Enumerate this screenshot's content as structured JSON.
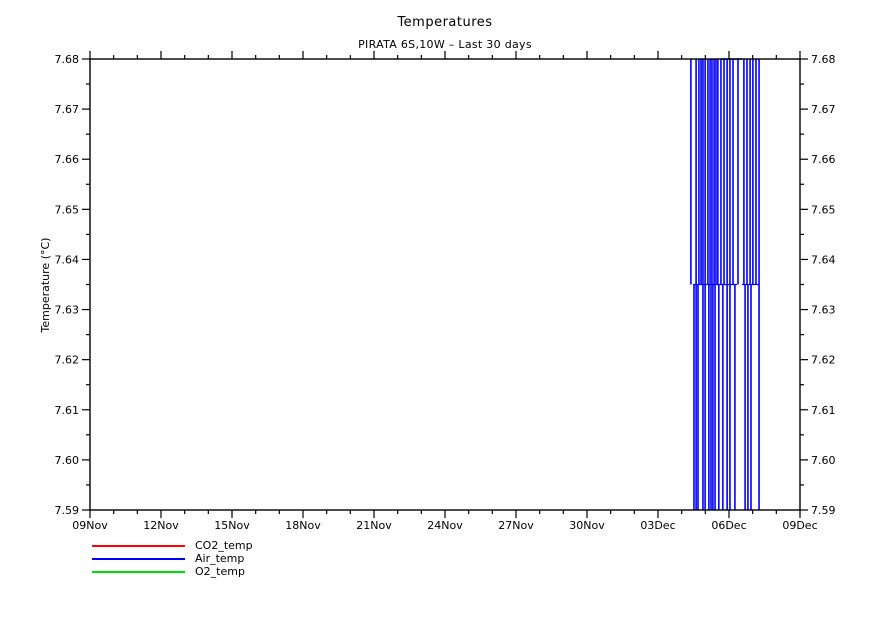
{
  "chart_data": {
    "type": "line",
    "title": "Temperatures",
    "subtitle": "PIRATA 6S,10W – Last 30 days",
    "ylabel": "Temperature (°C)",
    "ylim": [
      7.59,
      7.68
    ],
    "y_major_step": 0.01,
    "y_minor_step": 0.005,
    "y_tick_labels": [
      "7.59",
      "7.60",
      "7.61",
      "7.62",
      "7.63",
      "7.64",
      "7.65",
      "7.66",
      "7.67",
      "7.68"
    ],
    "y_labels_on_both_sides": true,
    "x_axis": {
      "days_total": 30,
      "major_every_days": 3,
      "minor_every_days": 1,
      "tick_labels": [
        "09Nov",
        "12Nov",
        "15Nov",
        "18Nov",
        "21Nov",
        "24Nov",
        "27Nov",
        "30Nov",
        "03Dec",
        "06Dec",
        "09Dec"
      ]
    },
    "grid": "off",
    "axis_color": "#000000",
    "legend": {
      "position": "below-left",
      "entries": [
        {
          "label": "CO2_temp",
          "color": "#ff0000"
        },
        {
          "label": "Air_temp",
          "color": "#0000ff"
        },
        {
          "label": "O2_temp",
          "color": "#00dd00"
        }
      ]
    },
    "series": [
      {
        "name": "CO2_temp",
        "color": "#ff0000",
        "data_visible": false
      },
      {
        "name": "Air_temp",
        "color": "#0000ff",
        "data_visible": true,
        "baseline_value": 7.635,
        "baseline_runs_days": [
          [
            25.48,
            27.34
          ],
          [
            27.55,
            28.27
          ]
        ],
        "top_clip_value": 7.68,
        "top_clip_runs_days": [
          [
            26.66,
            27.55
          ]
        ],
        "bottom_clip_value": 7.59,
        "up_spikes_days": [
          25.39,
          25.61,
          25.73,
          25.82,
          25.9,
          25.99,
          26.11,
          26.2,
          26.28,
          26.37,
          26.45,
          26.53,
          26.66,
          26.79,
          26.92,
          27.04,
          27.17,
          27.38,
          27.63,
          27.76,
          27.89,
          28.01,
          28.14,
          28.27
        ],
        "down_spikes_days": [
          25.52,
          25.61,
          25.69,
          25.9,
          25.99,
          26.15,
          26.24,
          26.32,
          26.41,
          26.57,
          26.74,
          26.92,
          27.04,
          27.25,
          27.68,
          27.8,
          27.93,
          28.27
        ]
      },
      {
        "name": "O2_temp",
        "color": "#00dd00",
        "data_visible": false
      }
    ]
  }
}
